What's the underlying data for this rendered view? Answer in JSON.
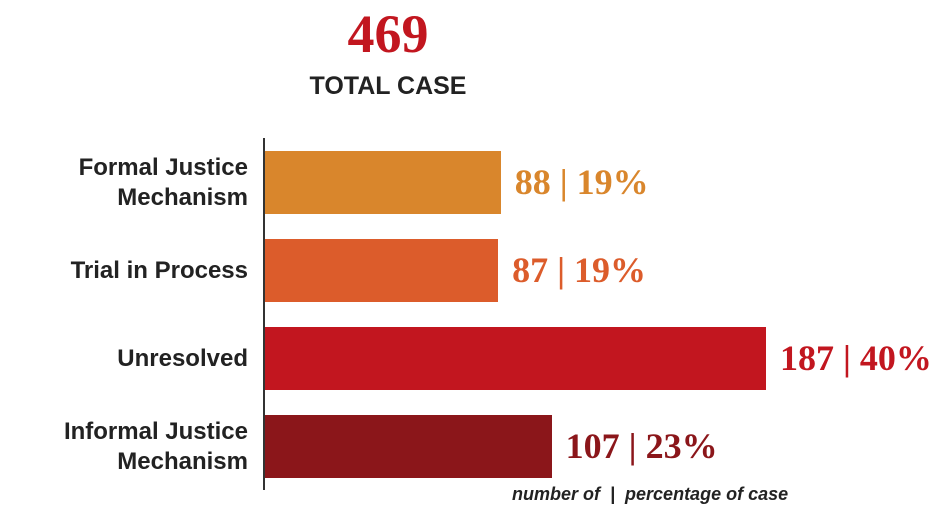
{
  "chart_data": {
    "type": "bar",
    "orientation": "horizontal",
    "total": 469,
    "title": "TOTAL CASE",
    "categories": [
      "Formal Justice Mechanism",
      "Trial in Process",
      "Unresolved",
      "Informal Justice Mechanism"
    ],
    "values": [
      88,
      87,
      187,
      107
    ],
    "value_labels": [
      "88 | 19%",
      "87 | 19%",
      "187 | 40%",
      "107 | 23%"
    ],
    "colors": [
      "#d9862c",
      "#dc5c2b",
      "#c2161f",
      "#8b161a"
    ],
    "total_color": "#c2161f",
    "footnote": "number of  |  percentage of case"
  }
}
